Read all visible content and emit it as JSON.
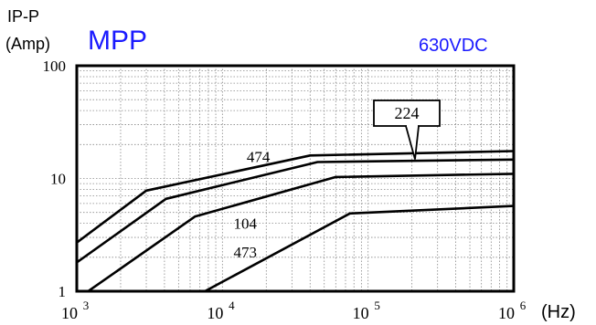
{
  "chart_data": {
    "type": "line",
    "title": "MPP",
    "title_color": "#1a1aff",
    "voltage_label": "630VDC",
    "voltage_color": "#1a1aff",
    "ylabel_line1": "IP-P",
    "ylabel_line2": "(Amp)",
    "xunit": "(Hz)",
    "x_scale": "log",
    "y_scale": "log",
    "xlim": [
      1000,
      1000000
    ],
    "ylim": [
      1,
      100
    ],
    "grid": true,
    "x_ticks": [
      {
        "value": 1000,
        "base": "10",
        "exp": "3"
      },
      {
        "value": 10000,
        "base": "10",
        "exp": "4"
      },
      {
        "value": 100000,
        "base": "10",
        "exp": "5"
      },
      {
        "value": 1000000,
        "base": "10",
        "exp": "6"
      }
    ],
    "y_ticks": [
      {
        "value": 1,
        "label": "1"
      },
      {
        "value": 10,
        "label": "10"
      },
      {
        "value": 100,
        "label": "100"
      }
    ],
    "series": [
      {
        "name": "224",
        "points": [
          [
            1000,
            2.7
          ],
          [
            3000,
            7.8
          ],
          [
            40000,
            16.0
          ],
          [
            1000000,
            17.5
          ]
        ]
      },
      {
        "name": "474",
        "points": [
          [
            1000,
            1.8
          ],
          [
            4100,
            6.6
          ],
          [
            45000,
            14.0
          ],
          [
            1000000,
            14.7
          ]
        ]
      },
      {
        "name": "104",
        "points": [
          [
            1000,
            0.85
          ],
          [
            6500,
            4.6
          ],
          [
            60000,
            10.3
          ],
          [
            1000000,
            11.0
          ]
        ]
      },
      {
        "name": "473",
        "points": [
          [
            6000,
            0.85
          ],
          [
            75000,
            4.9
          ],
          [
            1000000,
            5.7
          ]
        ]
      }
    ],
    "labels": [
      {
        "text": "474",
        "at": [
          16000,
          14.0
        ]
      },
      {
        "text": "104",
        "at": [
          13000,
          3.6
        ]
      },
      {
        "text": "473",
        "at": [
          13000,
          2.0
        ]
      }
    ],
    "callout": {
      "text": "224",
      "points_to": [
        210000,
        14.8
      ]
    }
  }
}
